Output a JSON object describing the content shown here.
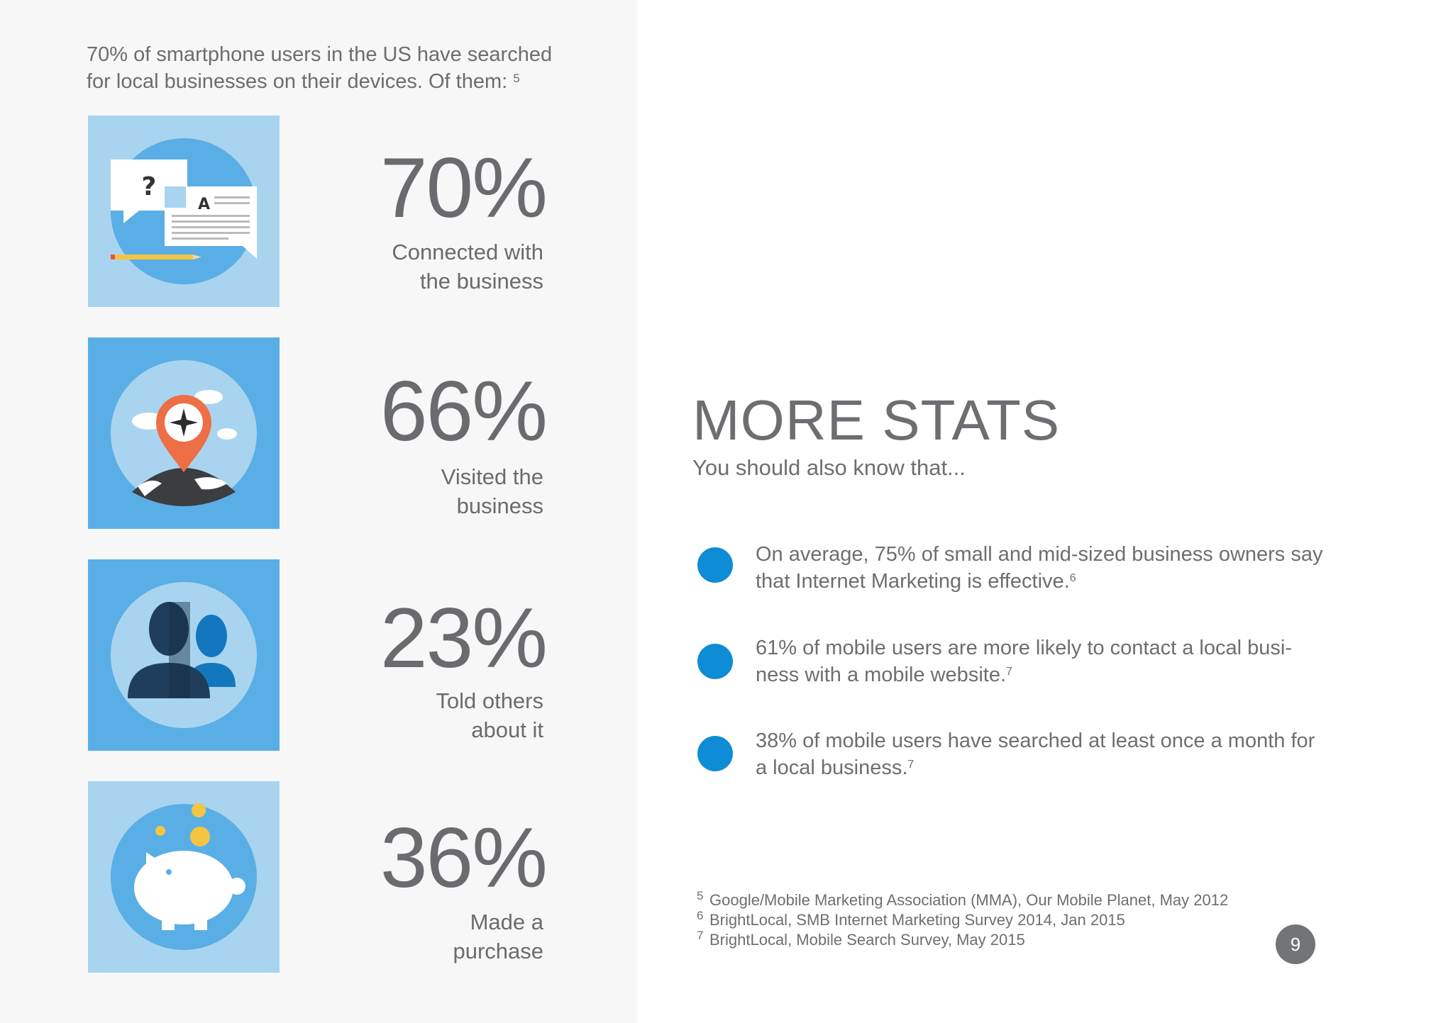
{
  "intro": {
    "text": "70% of smartphone users in the US have searched for local businesses on their devices. Of them: ",
    "footnote_ref": "5"
  },
  "stats": [
    {
      "value": "70%",
      "label": "Connected with\nthe business",
      "icon": "qa-chat-icon"
    },
    {
      "value": "66%",
      "label": "Visited the\nbusiness",
      "icon": "map-pin-globe-icon"
    },
    {
      "value": "23%",
      "label": "Told others\nabout it",
      "icon": "people-icon"
    },
    {
      "value": "36%",
      "label": "Made a\npurchase",
      "icon": "piggy-bank-icon"
    }
  ],
  "more": {
    "title": "MORE STATS",
    "subtitle": "You should also know that..."
  },
  "bullets": [
    {
      "text": "On average, 75% of small and mid-sized business owners  say that Internet Marketing is effective.",
      "ref": "6"
    },
    {
      "text": "61% of mobile users are more likely to contact a local busi-ness with a mobile website.",
      "ref": "7"
    },
    {
      "text": "38% of mobile users have searched at least once a month for a local business.",
      "ref": "7"
    }
  ],
  "footnotes": [
    {
      "num": "5",
      "text": "Google/Mobile Marketing Association (MMA), Our Mobile Planet, May 2012"
    },
    {
      "num": "6",
      "text": "BrightLocal, SMB Internet Marketing Survey 2014, Jan 2015"
    },
    {
      "num": "7",
      "text": "BrightLocal, Mobile Search Survey, May 2015"
    }
  ],
  "page_number": "9",
  "colors": {
    "accent_blue": "#0f8cd6",
    "tile_light": "#a9d4ef",
    "tile_mid": "#5aaee6",
    "text_gray": "#6d6e71"
  }
}
